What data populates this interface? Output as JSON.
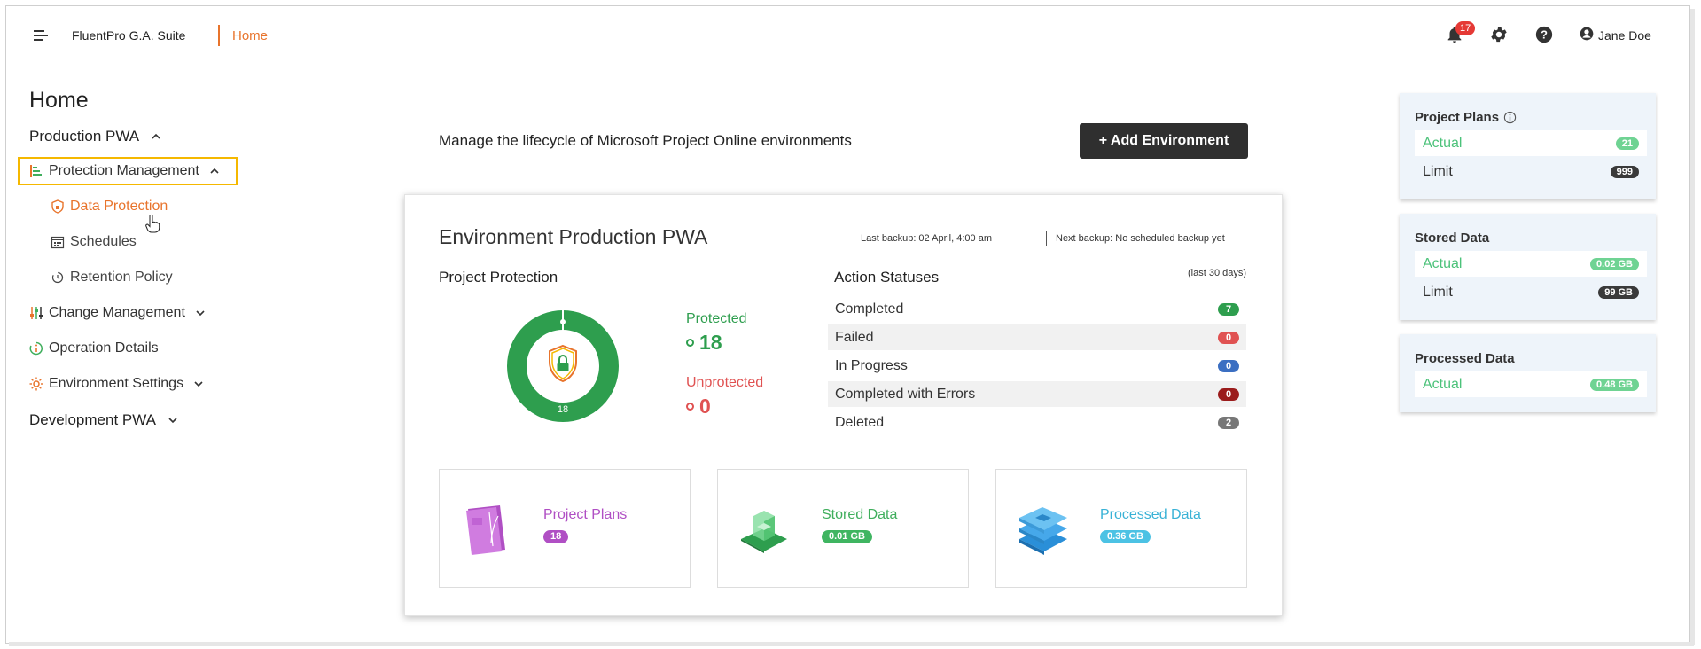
{
  "header": {
    "app_title": "FluentPro G.A. Suite",
    "breadcrumb": "Home",
    "notifications_count": "17",
    "user_name": "Jane Doe"
  },
  "sidebar": {
    "page_title": "Home",
    "production": "Production PWA",
    "protection_management": "Protection Management",
    "data_protection": "Data Protection",
    "schedules": "Schedules",
    "retention_policy": "Retention Policy",
    "change_management": "Change Management",
    "operation_details": "Operation Details",
    "environment_settings": "Environment Settings",
    "development": "Development PWA"
  },
  "main": {
    "lede": "Manage the lifecycle of Microsoft Project Online environments",
    "add_button": "+ Add Environment",
    "env_title": "Environment Production PWA",
    "last_backup": "Last backup: 02 April, 4:00 am",
    "next_backup": "Next backup: No scheduled backup yet",
    "project_protection": {
      "title": "Project Protection",
      "donut_center": "18",
      "protected_label": "Protected",
      "protected_value": "18",
      "unprotected_label": "Unprotected",
      "unprotected_value": "0"
    },
    "action_statuses": {
      "title": "Action Statuses",
      "period": "(last 30 days)",
      "rows": [
        {
          "label": "Completed",
          "count": "7",
          "color": "#2e9e4e"
        },
        {
          "label": "Failed",
          "count": "0",
          "color": "#e05252"
        },
        {
          "label": "In Progress",
          "count": "0",
          "color": "#3b6fc2"
        },
        {
          "label": "Completed with Errors",
          "count": "0",
          "color": "#9b1c1c"
        },
        {
          "label": "Deleted",
          "count": "2",
          "color": "#777777"
        }
      ]
    },
    "tiles": [
      {
        "label": "Project Plans",
        "value": "18",
        "color": "#b04fc4",
        "pill": "#b04fc4"
      },
      {
        "label": "Stored Data",
        "value": "0.01 GB",
        "color": "#3fae5c",
        "pill": "#3fb561"
      },
      {
        "label": "Processed Data",
        "value": "0.36 GB",
        "color": "#39b2d6",
        "pill": "#4cc2e4"
      }
    ]
  },
  "usage": {
    "project_plans": {
      "title": "Project Plans",
      "actual_label": "Actual",
      "actual": "21",
      "limit_label": "Limit",
      "limit": "999"
    },
    "stored_data": {
      "title": "Stored Data",
      "actual_label": "Actual",
      "actual": "0.02 GB",
      "limit_label": "Limit",
      "limit": "99 GB"
    },
    "processed_data": {
      "title": "Processed Data",
      "actual_label": "Actual",
      "actual": "0.48 GB"
    }
  },
  "colors": {
    "accent": "#e8742c",
    "green": "#2e9e4e",
    "red": "#e05252",
    "highlight": "#f5b800"
  }
}
